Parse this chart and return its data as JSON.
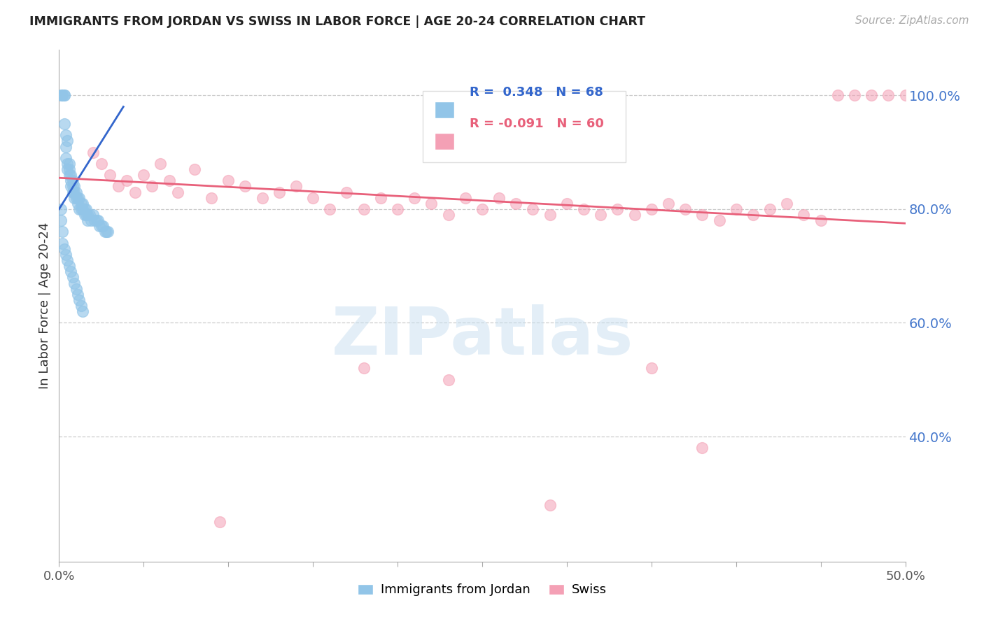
{
  "title": "IMMIGRANTS FROM JORDAN VS SWISS IN LABOR FORCE | AGE 20-24 CORRELATION CHART",
  "source": "Source: ZipAtlas.com",
  "ylabel": "In Labor Force | Age 20-24",
  "xlim": [
    0.0,
    0.5
  ],
  "ylim": [
    0.18,
    1.08
  ],
  "xticks_labeled": [
    0.0,
    0.5
  ],
  "xticks_minor": [
    0.05,
    0.1,
    0.15,
    0.2,
    0.25,
    0.3,
    0.35,
    0.4,
    0.45
  ],
  "yticks_right": [
    0.4,
    0.6,
    0.8,
    1.0
  ],
  "blue_color": "#92C5E8",
  "pink_color": "#F4A0B5",
  "trend_blue": "#3366CC",
  "trend_pink": "#E8607A",
  "watermark_color": "#C8DFF0",
  "background_color": "#FFFFFF",
  "grid_color": "#CCCCCC",
  "jordan_x": [
    0.001,
    0.002,
    0.002,
    0.003,
    0.003,
    0.003,
    0.004,
    0.004,
    0.004,
    0.005,
    0.005,
    0.005,
    0.006,
    0.006,
    0.006,
    0.007,
    0.007,
    0.007,
    0.008,
    0.008,
    0.008,
    0.009,
    0.009,
    0.009,
    0.01,
    0.01,
    0.011,
    0.011,
    0.012,
    0.012,
    0.013,
    0.013,
    0.014,
    0.014,
    0.015,
    0.015,
    0.016,
    0.016,
    0.017,
    0.017,
    0.018,
    0.019,
    0.02,
    0.021,
    0.022,
    0.023,
    0.024,
    0.025,
    0.026,
    0.027,
    0.028,
    0.029,
    0.001,
    0.001,
    0.002,
    0.002,
    0.003,
    0.004,
    0.005,
    0.006,
    0.007,
    0.008,
    0.009,
    0.01,
    0.011,
    0.012,
    0.013,
    0.014
  ],
  "jordan_y": [
    1.0,
    1.0,
    1.0,
    1.0,
    1.0,
    0.95,
    0.93,
    0.91,
    0.89,
    0.92,
    0.88,
    0.87,
    0.88,
    0.87,
    0.86,
    0.86,
    0.85,
    0.84,
    0.85,
    0.84,
    0.83,
    0.84,
    0.83,
    0.82,
    0.83,
    0.82,
    0.82,
    0.81,
    0.82,
    0.8,
    0.81,
    0.8,
    0.81,
    0.8,
    0.8,
    0.79,
    0.8,
    0.79,
    0.79,
    0.78,
    0.79,
    0.78,
    0.79,
    0.78,
    0.78,
    0.78,
    0.77,
    0.77,
    0.77,
    0.76,
    0.76,
    0.76,
    0.78,
    0.8,
    0.76,
    0.74,
    0.73,
    0.72,
    0.71,
    0.7,
    0.69,
    0.68,
    0.67,
    0.66,
    0.65,
    0.64,
    0.63,
    0.62
  ],
  "swiss_x": [
    0.02,
    0.025,
    0.03,
    0.035,
    0.04,
    0.045,
    0.05,
    0.055,
    0.06,
    0.065,
    0.07,
    0.08,
    0.09,
    0.1,
    0.11,
    0.12,
    0.13,
    0.14,
    0.15,
    0.16,
    0.17,
    0.18,
    0.19,
    0.2,
    0.21,
    0.22,
    0.23,
    0.24,
    0.25,
    0.26,
    0.27,
    0.28,
    0.29,
    0.3,
    0.31,
    0.32,
    0.33,
    0.34,
    0.35,
    0.36,
    0.37,
    0.38,
    0.39,
    0.4,
    0.41,
    0.42,
    0.43,
    0.44,
    0.45,
    0.46,
    0.47,
    0.48,
    0.49,
    0.5,
    0.35,
    0.23,
    0.38,
    0.29,
    0.18,
    0.095
  ],
  "swiss_y": [
    0.9,
    0.88,
    0.86,
    0.84,
    0.85,
    0.83,
    0.86,
    0.84,
    0.88,
    0.85,
    0.83,
    0.87,
    0.82,
    0.85,
    0.84,
    0.82,
    0.83,
    0.84,
    0.82,
    0.8,
    0.83,
    0.8,
    0.82,
    0.8,
    0.82,
    0.81,
    0.79,
    0.82,
    0.8,
    0.82,
    0.81,
    0.8,
    0.79,
    0.81,
    0.8,
    0.79,
    0.8,
    0.79,
    0.8,
    0.81,
    0.8,
    0.79,
    0.78,
    0.8,
    0.79,
    0.8,
    0.81,
    0.79,
    0.78,
    1.0,
    1.0,
    1.0,
    1.0,
    1.0,
    0.52,
    0.5,
    0.38,
    0.28,
    0.52,
    0.25
  ],
  "jordan_trend_x": [
    0.0,
    0.038
  ],
  "jordan_trend_y": [
    0.8,
    0.98
  ],
  "swiss_trend_x": [
    0.0,
    0.5
  ],
  "swiss_trend_y": [
    0.855,
    0.775
  ]
}
